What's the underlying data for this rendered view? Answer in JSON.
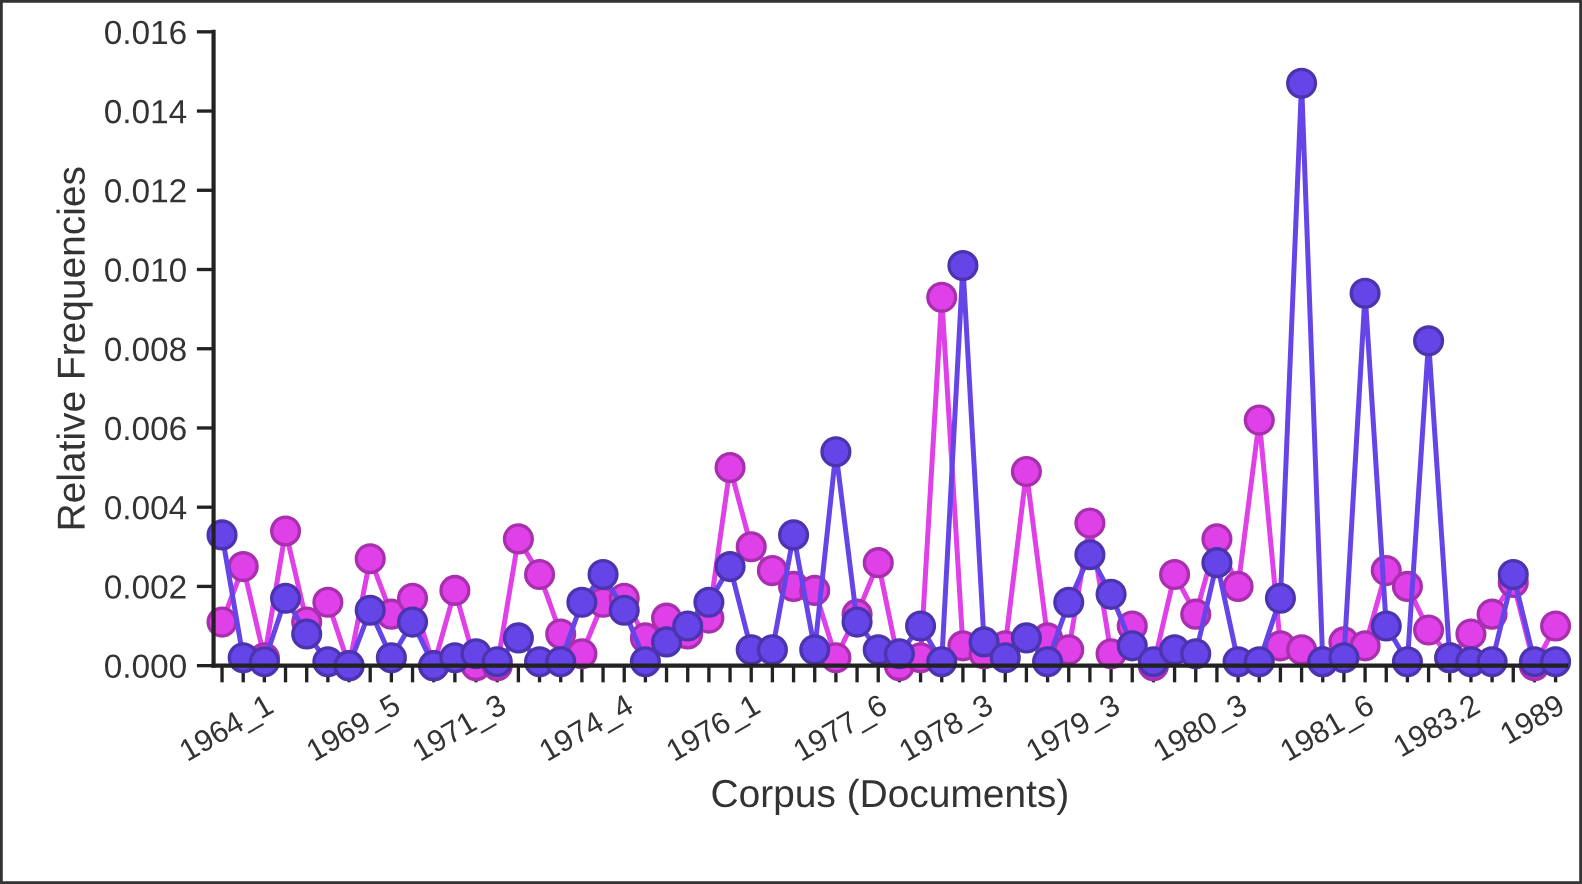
{
  "chart_data": {
    "type": "line",
    "xlabel": "Corpus (Documents)",
    "ylabel": "Relative Frequencies",
    "categories": [
      null,
      null,
      "1964_1",
      null,
      null,
      null,
      null,
      null,
      "1969_5",
      null,
      null,
      null,
      null,
      "1971_3",
      null,
      null,
      null,
      null,
      null,
      "1974_4",
      null,
      null,
      null,
      null,
      null,
      "1976_1",
      null,
      null,
      null,
      null,
      null,
      "1977_6",
      null,
      null,
      null,
      null,
      "1978_3",
      null,
      null,
      null,
      null,
      null,
      "1979_3",
      null,
      null,
      null,
      null,
      null,
      "1980_3",
      null,
      null,
      null,
      null,
      null,
      "1981_6",
      null,
      null,
      null,
      null,
      "1983.2",
      null,
      null,
      null,
      "1989"
    ],
    "series": [
      {
        "color": "#e040e8",
        "values": [
          0.0011,
          0.0025,
          0.0002,
          0.0034,
          0.0011,
          0.0016,
          0.0,
          0.0027,
          0.0013,
          0.0017,
          0.0,
          0.0019,
          0.0,
          0.0,
          0.0032,
          0.0023,
          0.0008,
          0.0003,
          0.0016,
          0.0017,
          0.0007,
          0.0012,
          0.0008,
          0.0012,
          0.005,
          0.003,
          0.0024,
          0.002,
          0.0019,
          0.0002,
          0.0013,
          0.0026,
          0.0,
          0.0002,
          0.0093,
          0.0005,
          0.0003,
          0.0005,
          0.0049,
          0.0007,
          0.0004,
          0.0036,
          0.0003,
          0.001,
          0.0,
          0.0023,
          0.0013,
          0.0032,
          0.002,
          0.0062,
          0.0005,
          0.0004,
          0.0001,
          0.0006,
          0.0005,
          0.0024,
          0.002,
          0.0009,
          0.0002,
          0.0008,
          0.0013,
          0.0021,
          0.0,
          0.001
        ]
      },
      {
        "color": "#6545e8",
        "values": [
          0.0033,
          0.0002,
          0.0001,
          0.0017,
          0.0008,
          0.0001,
          0.0,
          0.0014,
          0.0002,
          0.0011,
          0.0,
          0.0002,
          0.0003,
          0.0001,
          0.0007,
          0.0001,
          0.0001,
          0.0016,
          0.0023,
          0.0014,
          0.0001,
          0.0006,
          0.001,
          0.0016,
          0.0025,
          0.0004,
          0.0004,
          0.0033,
          0.0004,
          0.0054,
          0.0011,
          0.0004,
          0.0003,
          0.001,
          0.0001,
          0.0101,
          0.0006,
          0.0002,
          0.0007,
          0.0001,
          0.0016,
          0.0028,
          0.0018,
          0.0005,
          0.0001,
          0.0004,
          0.0003,
          0.0026,
          0.0001,
          0.0001,
          0.0017,
          0.0147,
          0.0001,
          0.0002,
          0.0094,
          0.001,
          0.0001,
          0.0082,
          0.0002,
          0.0001,
          0.0001,
          0.0023,
          0.0001,
          0.0001
        ]
      }
    ],
    "ylim": [
      0,
      0.016
    ],
    "yticks": [
      {
        "value": 0,
        "label": "0.000"
      },
      {
        "value": 0.002,
        "label": "0.002"
      },
      {
        "value": 0.004,
        "label": "0.004"
      },
      {
        "value": 0.006,
        "label": "0.006"
      },
      {
        "value": 0.008,
        "label": "0.008"
      },
      {
        "value": 0.01,
        "label": "0.010"
      },
      {
        "value": 0.012,
        "label": "0.012"
      },
      {
        "value": 0.014,
        "label": "0.014"
      },
      {
        "value": 0.016,
        "label": "0.016"
      }
    ],
    "marker": "circle",
    "line_style": "solid"
  }
}
